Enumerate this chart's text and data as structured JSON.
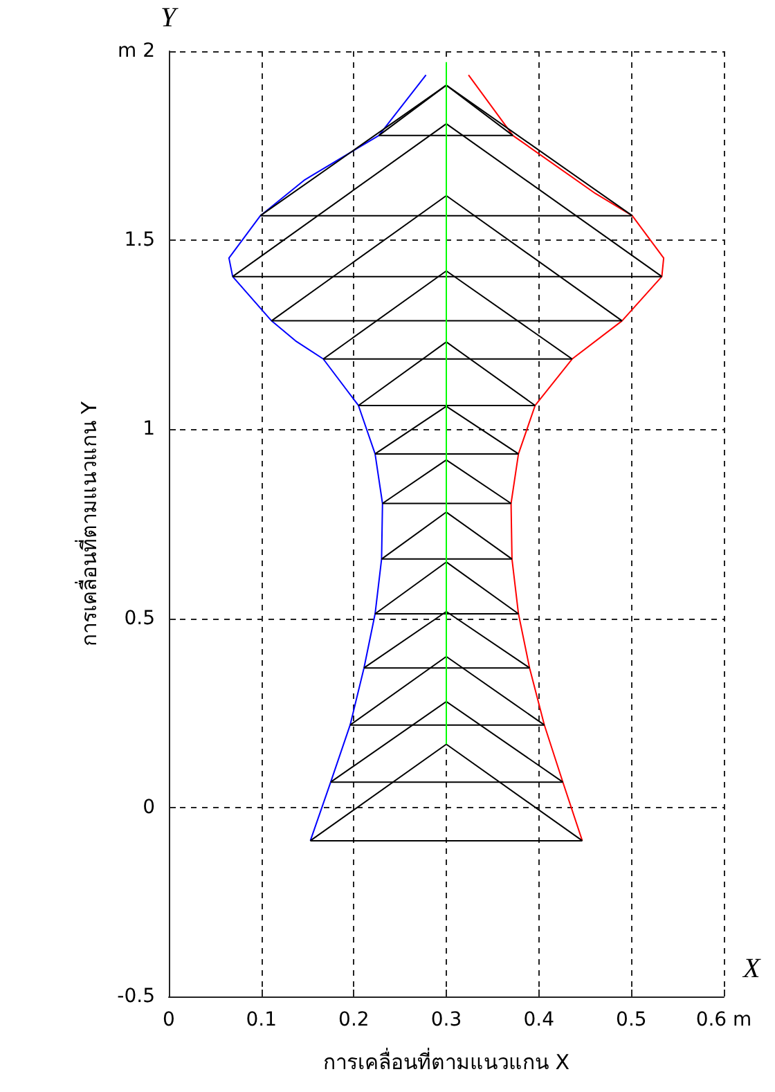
{
  "chart_data": {
    "type": "line",
    "xlabel": "การเคลื่อนที่ตามแนวแกน X",
    "ylabel": "การเคลื่อนที่ตามแนวแกน Y",
    "annotations": [
      "Y",
      "X"
    ],
    "xlim": [
      0,
      0.6
    ],
    "xticks": [
      0,
      0.1,
      0.2,
      0.3,
      0.4,
      0.5,
      {
        "value": 0.6,
        "label": "0.6 m"
      }
    ],
    "ylim": [
      -0.5,
      2
    ],
    "yticks": [
      -0.5,
      0,
      0.5,
      1,
      1.5,
      {
        "value": 2,
        "label": "m 2"
      }
    ],
    "grid": true,
    "marker": "none",
    "line_style": "solid",
    "series": [
      {
        "color": "#0000ff",
        "x": [
          0.278,
          0.227,
          0.147,
          0.099,
          0.065,
          0.069,
          0.111,
          0.137,
          0.167,
          0.205,
          0.223,
          0.231,
          0.23,
          0.223,
          0.211,
          0.196,
          0.175,
          0.153
        ],
        "values": [
          1.937,
          1.777,
          1.66,
          1.565,
          1.453,
          1.404,
          1.287,
          1.234,
          1.186,
          1.063,
          0.935,
          0.804,
          0.657,
          0.512,
          0.369,
          0.218,
          0.067,
          -0.088
        ]
      },
      {
        "color": "#ff0000",
        "x": [
          0.324,
          0.372,
          0.461,
          0.501,
          0.535,
          0.533,
          0.49,
          0.436,
          0.396,
          0.378,
          0.37,
          0.371,
          0.378,
          0.39,
          0.406,
          0.426,
          0.447
        ],
        "values": [
          1.937,
          1.777,
          1.624,
          1.565,
          1.453,
          1.404,
          1.287,
          1.186,
          1.063,
          0.935,
          0.804,
          0.657,
          0.512,
          0.369,
          0.218,
          0.067,
          -0.088
        ]
      },
      {
        "color": "#00ff00",
        "x": [
          0.3,
          0.3
        ],
        "values": [
          0.167,
          1.971
        ]
      },
      {
        "color": "#000000",
        "x": [
          0.153,
          0.447
        ],
        "values": [
          -0.088,
          -0.088
        ]
      },
      {
        "color": "#000000",
        "x": [
          0.153,
          0.3,
          0.447
        ],
        "values": [
          -0.088,
          0.167,
          -0.088
        ]
      },
      {
        "color": "#000000",
        "x": [
          0.175,
          0.426
        ],
        "values": [
          0.067,
          0.067
        ]
      },
      {
        "color": "#000000",
        "x": [
          0.175,
          0.3,
          0.426
        ],
        "values": [
          0.067,
          0.28,
          0.067
        ]
      },
      {
        "color": "#000000",
        "x": [
          0.196,
          0.406
        ],
        "values": [
          0.218,
          0.218
        ]
      },
      {
        "color": "#000000",
        "x": [
          0.196,
          0.3,
          0.406
        ],
        "values": [
          0.218,
          0.399,
          0.218
        ]
      },
      {
        "color": "#000000",
        "x": [
          0.211,
          0.39
        ],
        "values": [
          0.369,
          0.369
        ]
      },
      {
        "color": "#000000",
        "x": [
          0.211,
          0.3,
          0.39
        ],
        "values": [
          0.369,
          0.518,
          0.369
        ]
      },
      {
        "color": "#000000",
        "x": [
          0.223,
          0.378
        ],
        "values": [
          0.512,
          0.512
        ]
      },
      {
        "color": "#000000",
        "x": [
          0.223,
          0.3,
          0.378
        ],
        "values": [
          0.512,
          0.649,
          0.512
        ]
      },
      {
        "color": "#000000",
        "x": [
          0.23,
          0.371
        ],
        "values": [
          0.657,
          0.657
        ]
      },
      {
        "color": "#000000",
        "x": [
          0.23,
          0.3,
          0.371
        ],
        "values": [
          0.657,
          0.781,
          0.657
        ]
      },
      {
        "color": "#000000",
        "x": [
          0.231,
          0.37
        ],
        "values": [
          0.804,
          0.804
        ]
      },
      {
        "color": "#000000",
        "x": [
          0.231,
          0.3,
          0.37
        ],
        "values": [
          0.804,
          0.919,
          0.804
        ]
      },
      {
        "color": "#000000",
        "x": [
          0.223,
          0.378
        ],
        "values": [
          0.935,
          0.935
        ]
      },
      {
        "color": "#000000",
        "x": [
          0.223,
          0.3,
          0.378
        ],
        "values": [
          0.935,
          1.061,
          0.935
        ]
      },
      {
        "color": "#000000",
        "x": [
          0.205,
          0.396
        ],
        "values": [
          1.063,
          1.063
        ]
      },
      {
        "color": "#000000",
        "x": [
          0.205,
          0.3,
          0.396
        ],
        "values": [
          1.063,
          1.231,
          1.063
        ]
      },
      {
        "color": "#000000",
        "x": [
          0.167,
          0.436
        ],
        "values": [
          1.186,
          1.186
        ]
      },
      {
        "color": "#000000",
        "x": [
          0.167,
          0.3,
          0.436
        ],
        "values": [
          1.186,
          1.419,
          1.186
        ]
      },
      {
        "color": "#000000",
        "x": [
          0.111,
          0.49
        ],
        "values": [
          1.287,
          1.287
        ]
      },
      {
        "color": "#000000",
        "x": [
          0.111,
          0.3,
          0.49
        ],
        "values": [
          1.287,
          1.618,
          1.287
        ]
      },
      {
        "color": "#000000",
        "x": [
          0.069,
          0.533
        ],
        "values": [
          1.404,
          1.404
        ]
      },
      {
        "color": "#000000",
        "x": [
          0.069,
          0.3,
          0.533
        ],
        "values": [
          1.404,
          1.808,
          1.404
        ]
      },
      {
        "color": "#000000",
        "x": [
          0.099,
          0.501
        ],
        "values": [
          1.565,
          1.565
        ]
      },
      {
        "color": "#000000",
        "x": [
          0.099,
          0.3,
          0.501
        ],
        "values": [
          1.565,
          1.91,
          1.565
        ]
      },
      {
        "color": "#000000",
        "x": [
          0.227,
          0.372
        ],
        "values": [
          1.777,
          1.777
        ]
      },
      {
        "color": "#000000",
        "x": [
          0.227,
          0.3,
          0.372
        ],
        "values": [
          1.777,
          1.91,
          1.777
        ]
      }
    ]
  }
}
